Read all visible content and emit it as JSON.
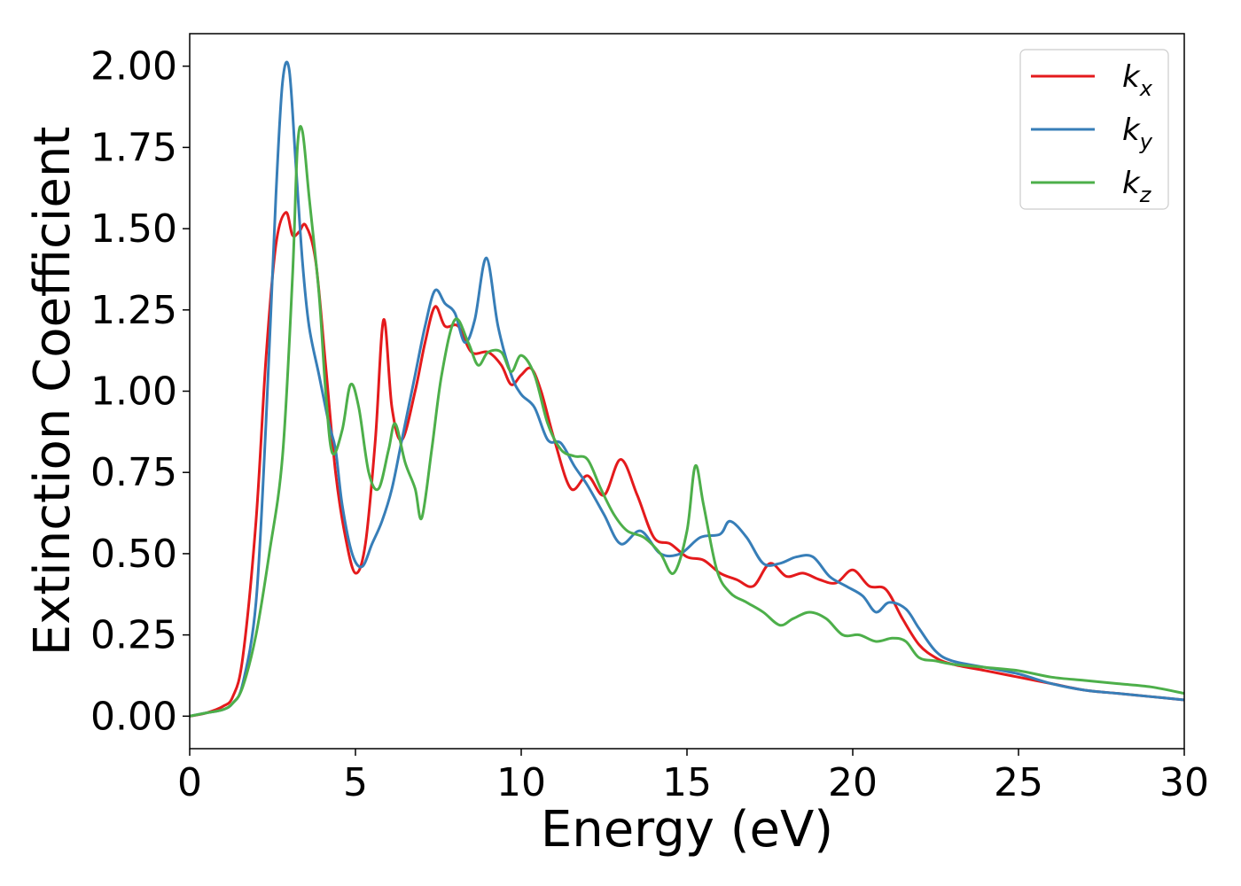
{
  "chart_data": {
    "type": "line",
    "xlabel": "Energy (eV)",
    "ylabel": "Extinction Coefficient",
    "xlim": [
      0,
      30
    ],
    "ylim": [
      -0.1,
      2.1
    ],
    "xticks": [
      0,
      5,
      10,
      15,
      20,
      25,
      30
    ],
    "xtick_labels": [
      "0",
      "5",
      "10",
      "15",
      "20",
      "25",
      "30"
    ],
    "yticks": [
      0,
      0.25,
      0.5,
      0.75,
      1.0,
      1.25,
      1.5,
      1.75,
      2.0
    ],
    "ytick_labels": [
      "0.00",
      "0.25",
      "0.50",
      "0.75",
      "1.00",
      "1.25",
      "1.50",
      "1.75",
      "2.00"
    ],
    "grid": false,
    "legend_position": "top-right",
    "series": [
      {
        "name": "k_x",
        "legend_base": "k",
        "legend_sub": "x",
        "color": "#e41a1c",
        "x": [
          0,
          0.5,
          1.0,
          1.3,
          1.6,
          2.0,
          2.3,
          2.6,
          2.9,
          3.1,
          3.3,
          3.5,
          3.8,
          4.1,
          4.4,
          4.7,
          5.0,
          5.3,
          5.6,
          5.85,
          6.1,
          6.4,
          6.8,
          7.1,
          7.4,
          7.7,
          8.1,
          8.5,
          9.0,
          9.4,
          9.7,
          10.0,
          10.3,
          10.6,
          11.0,
          11.5,
          12.0,
          12.5,
          13.0,
          13.5,
          14.0,
          14.5,
          15.0,
          15.5,
          16.0,
          16.5,
          17.0,
          17.5,
          18.0,
          18.5,
          19.0,
          19.5,
          20.0,
          20.5,
          21.0,
          21.5,
          22.0,
          22.5,
          23.0,
          24.0,
          25.0,
          26.0,
          27.0,
          28.0,
          29.0,
          30.0
        ],
        "y": [
          0.0,
          0.01,
          0.03,
          0.06,
          0.18,
          0.6,
          1.1,
          1.45,
          1.55,
          1.48,
          1.49,
          1.51,
          1.4,
          1.08,
          0.75,
          0.55,
          0.44,
          0.53,
          0.85,
          1.22,
          0.95,
          0.85,
          1.0,
          1.15,
          1.26,
          1.2,
          1.2,
          1.12,
          1.12,
          1.08,
          1.02,
          1.05,
          1.07,
          1.0,
          0.85,
          0.7,
          0.74,
          0.68,
          0.79,
          0.68,
          0.55,
          0.53,
          0.49,
          0.48,
          0.44,
          0.42,
          0.4,
          0.47,
          0.43,
          0.44,
          0.42,
          0.41,
          0.45,
          0.4,
          0.39,
          0.3,
          0.22,
          0.18,
          0.16,
          0.14,
          0.12,
          0.1,
          0.08,
          0.07,
          0.06,
          0.05
        ]
      },
      {
        "name": "k_y",
        "legend_base": "k",
        "legend_sub": "y",
        "color": "#377eb8",
        "x": [
          0,
          0.5,
          1.0,
          1.3,
          1.6,
          2.0,
          2.3,
          2.6,
          2.8,
          3.0,
          3.2,
          3.4,
          3.6,
          3.9,
          4.2,
          4.4,
          4.6,
          4.9,
          5.2,
          5.5,
          5.8,
          6.1,
          6.4,
          6.8,
          7.1,
          7.4,
          7.7,
          8.0,
          8.3,
          8.6,
          8.95,
          9.3,
          9.7,
          10.0,
          10.4,
          10.8,
          11.2,
          11.6,
          12.0,
          12.5,
          13.0,
          13.6,
          14.2,
          14.8,
          15.4,
          16.0,
          16.3,
          16.8,
          17.3,
          17.8,
          18.3,
          18.8,
          19.3,
          19.8,
          20.3,
          20.7,
          21.1,
          21.6,
          22.0,
          22.5,
          23.0,
          24.0,
          25.0,
          26.0,
          27.0,
          28.0,
          29.0,
          30.0
        ],
        "y": [
          0.0,
          0.01,
          0.02,
          0.04,
          0.1,
          0.35,
          0.9,
          1.6,
          1.95,
          1.99,
          1.7,
          1.4,
          1.2,
          1.05,
          0.9,
          0.82,
          0.65,
          0.5,
          0.46,
          0.53,
          0.6,
          0.7,
          0.85,
          1.05,
          1.2,
          1.31,
          1.27,
          1.24,
          1.15,
          1.22,
          1.41,
          1.2,
          1.05,
          0.99,
          0.95,
          0.85,
          0.84,
          0.77,
          0.71,
          0.62,
          0.53,
          0.57,
          0.5,
          0.5,
          0.55,
          0.56,
          0.6,
          0.55,
          0.47,
          0.47,
          0.49,
          0.49,
          0.43,
          0.4,
          0.37,
          0.32,
          0.35,
          0.33,
          0.27,
          0.2,
          0.17,
          0.15,
          0.13,
          0.1,
          0.08,
          0.07,
          0.06,
          0.05
        ]
      },
      {
        "name": "k_z",
        "legend_base": "k",
        "legend_sub": "z",
        "color": "#4daf4a",
        "x": [
          0,
          0.5,
          1.0,
          1.3,
          1.6,
          2.0,
          2.4,
          2.8,
          3.1,
          3.25,
          3.4,
          3.6,
          3.9,
          4.1,
          4.3,
          4.6,
          4.85,
          5.1,
          5.4,
          5.7,
          6.0,
          6.2,
          6.5,
          6.8,
          7.0,
          7.3,
          7.6,
          8.0,
          8.4,
          8.7,
          9.0,
          9.4,
          9.7,
          10.0,
          10.4,
          10.8,
          11.2,
          11.6,
          12.0,
          12.4,
          12.8,
          13.2,
          13.7,
          14.2,
          14.6,
          15.0,
          15.25,
          15.5,
          15.9,
          16.3,
          16.8,
          17.3,
          17.8,
          18.2,
          18.7,
          19.2,
          19.7,
          20.2,
          20.7,
          21.2,
          21.6,
          22.0,
          22.5,
          23.0,
          24.0,
          25.0,
          26.0,
          27.0,
          28.0,
          29.0,
          30.0
        ],
        "y": [
          0.0,
          0.01,
          0.02,
          0.04,
          0.09,
          0.25,
          0.5,
          0.8,
          1.35,
          1.75,
          1.8,
          1.6,
          1.3,
          1.0,
          0.81,
          0.88,
          1.02,
          0.95,
          0.75,
          0.7,
          0.82,
          0.9,
          0.78,
          0.7,
          0.61,
          0.82,
          1.05,
          1.22,
          1.15,
          1.08,
          1.12,
          1.12,
          1.06,
          1.11,
          1.05,
          0.9,
          0.82,
          0.8,
          0.79,
          0.7,
          0.62,
          0.57,
          0.55,
          0.5,
          0.44,
          0.57,
          0.77,
          0.65,
          0.45,
          0.38,
          0.35,
          0.32,
          0.28,
          0.3,
          0.32,
          0.3,
          0.25,
          0.25,
          0.23,
          0.24,
          0.23,
          0.18,
          0.17,
          0.16,
          0.15,
          0.14,
          0.12,
          0.11,
          0.1,
          0.09,
          0.07
        ]
      }
    ]
  }
}
